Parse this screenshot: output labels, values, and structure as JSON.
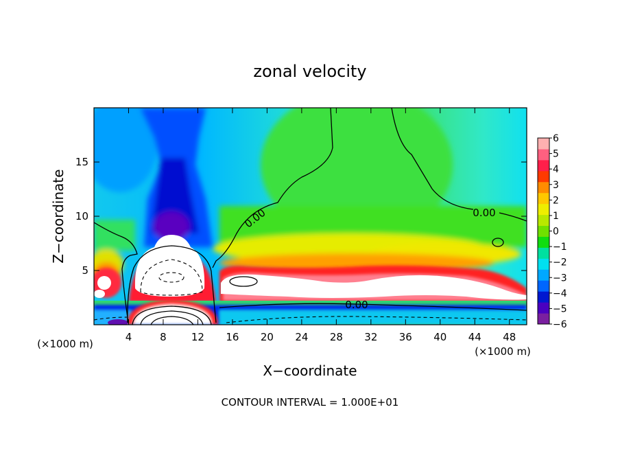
{
  "chart_data": {
    "type": "heatmap",
    "title": "zonal velocity",
    "xlabel": "X−coordinate",
    "ylabel": "Z−coordinate",
    "x_unit_label": "(×1000 m)",
    "z_unit_label": "(×1000 m)",
    "xlim": [
      0,
      50
    ],
    "ylim": [
      0,
      20
    ],
    "x_ticks": [
      4,
      8,
      12,
      16,
      20,
      24,
      28,
      32,
      36,
      40,
      44,
      48
    ],
    "y_ticks": [
      5,
      10,
      15
    ],
    "colorbar": {
      "range": [
        -6,
        6
      ],
      "ticks": [
        "6",
        "5",
        "4",
        "3",
        "2",
        "1",
        "0",
        "−1",
        "−2",
        "−3",
        "−4",
        "−5",
        "−6"
      ],
      "colors": [
        "#7a1fa0",
        "#4a00c0",
        "#0018d0",
        "#0066ff",
        "#00a8ff",
        "#00e0f0",
        "#00e0a0",
        "#10dd10",
        "#70e000",
        "#b8e800",
        "#eeee00",
        "#ffc800",
        "#ff8c00",
        "#ff3a00",
        "#ff1f4a",
        "#ff6080",
        "#ffb0b0"
      ]
    },
    "contour_labels": [
      "0.00",
      "0.00",
      "0.00"
    ],
    "footnote": "CONTOUR INTERVAL = 1.000E+01",
    "features": [
      {
        "kind": "max",
        "x": 9.5,
        "z": 4.0
      },
      {
        "kind": "max",
        "x": 29,
        "z": 3.8
      },
      {
        "kind": "min",
        "x": 9.5,
        "z": 10.5
      },
      {
        "kind": "max",
        "x": 1.5,
        "z": 4.0
      }
    ]
  }
}
